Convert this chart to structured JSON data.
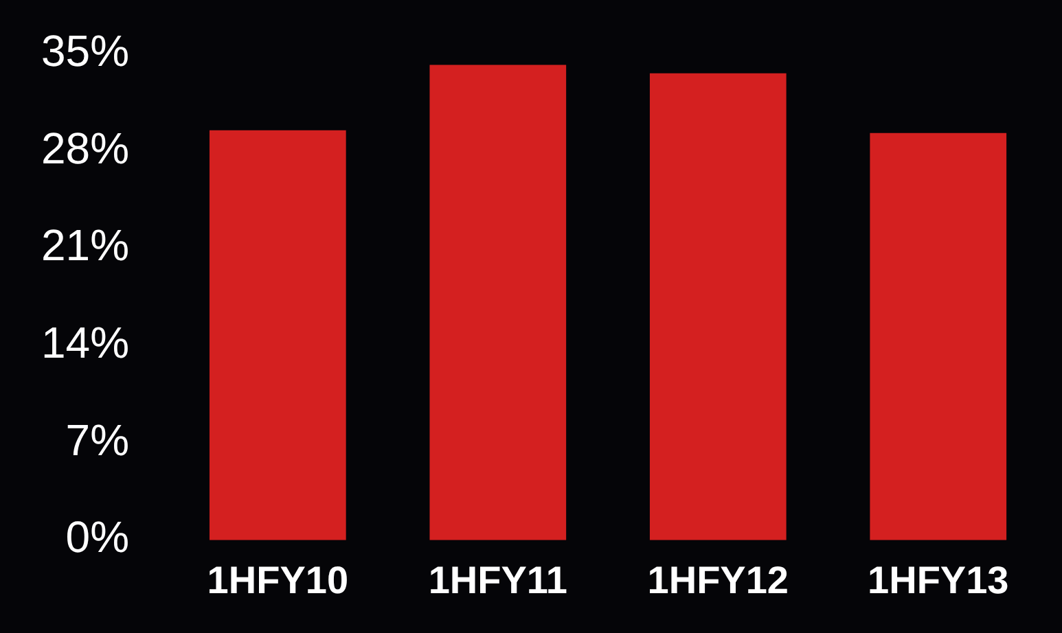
{
  "chart_data": {
    "type": "bar",
    "categories": [
      "1HFY10",
      "1HFY11",
      "1HFY12",
      "1HFY13"
    ],
    "values": [
      29.5,
      34.2,
      33.6,
      29.3
    ],
    "color": "#d42020",
    "ylim": [
      0,
      35
    ],
    "yticks": [
      {
        "value": 0,
        "label": "0%"
      },
      {
        "value": 7,
        "label": "7%"
      },
      {
        "value": 14,
        "label": "14%"
      },
      {
        "value": 21,
        "label": "21%"
      },
      {
        "value": 28,
        "label": "28%"
      },
      {
        "value": 35,
        "label": "35%"
      }
    ],
    "grid": false,
    "legend": false
  }
}
